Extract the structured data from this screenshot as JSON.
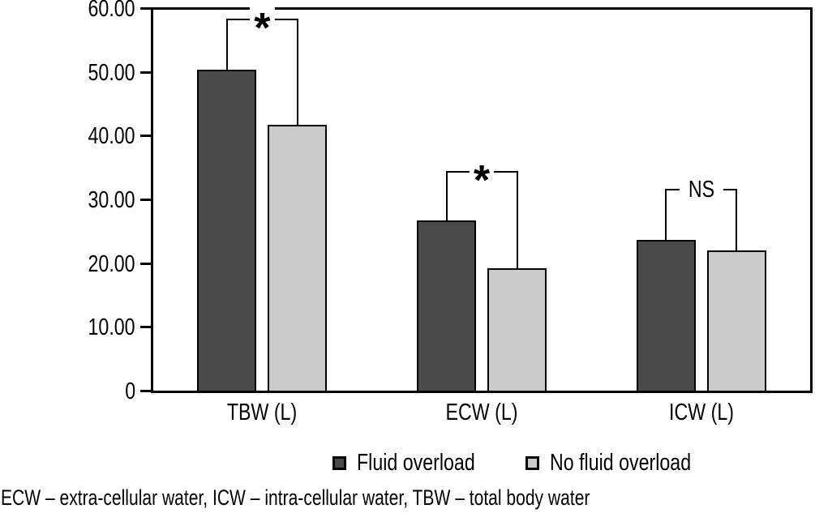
{
  "chart_data": {
    "type": "bar",
    "title": "",
    "xlabel": "",
    "ylabel": "",
    "grid": false,
    "legend_position": "bottom",
    "ylim": [
      0,
      60
    ],
    "categories": [
      "TBW (L)",
      "ECW (L)",
      "ICW (L)"
    ],
    "series": [
      {
        "name": "Fluid overload",
        "color": "#4a4a4a",
        "values": [
          50.4,
          26.7,
          23.7
        ]
      },
      {
        "name": "No fluid overload",
        "color": "#cbcbcb",
        "values": [
          41.7,
          19.2,
          22.0
        ]
      }
    ],
    "y_ticks": [
      {
        "value": 60,
        "label": "60.00"
      },
      {
        "value": 50,
        "label": "50.00"
      },
      {
        "value": 40,
        "label": "40.00"
      },
      {
        "value": 30,
        "label": "30.00"
      },
      {
        "value": 20,
        "label": "20.00"
      },
      {
        "value": 10,
        "label": "10.00"
      },
      {
        "value": 0,
        "label": "0"
      }
    ],
    "significance_brackets": [
      {
        "category": "TBW (L)",
        "label": "*",
        "top_value": 58.3
      },
      {
        "category": "ECW (L)",
        "label": "*",
        "top_value": 34.5
      },
      {
        "category": "ICW (L)",
        "label": "NS",
        "top_value": 31.6
      }
    ]
  },
  "legend": {
    "items": [
      {
        "label": "Fluid overload"
      },
      {
        "label": "No fluid overload"
      }
    ]
  },
  "footnote": "ECW – extra-cellular water, ICW – intra-cellular water, TBW – total body water"
}
